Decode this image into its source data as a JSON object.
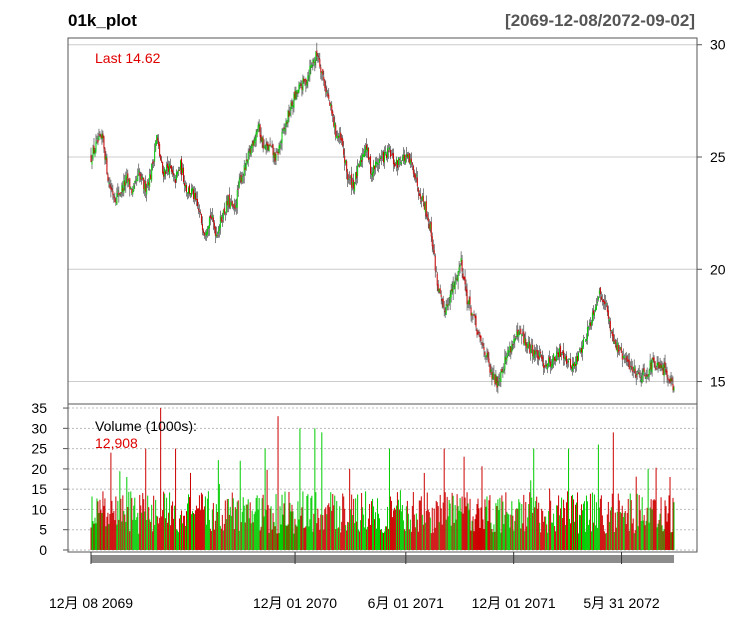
{
  "chart_data": {
    "type": "candlestick",
    "title": "01k_plot",
    "date_range": "[2069-12-08/2072-09-02]",
    "price_panel": {
      "last_label": "Last 14.62",
      "y_ticks": [
        15,
        20,
        25,
        30
      ],
      "ylim": [
        14.0,
        30.3
      ],
      "grid": true,
      "up_color": "#00cc00",
      "down_color": "#cc0000",
      "path": [
        [
          0,
          25.0
        ],
        [
          6,
          25.6
        ],
        [
          12,
          25.8
        ],
        [
          18,
          23.8
        ],
        [
          24,
          23.2
        ],
        [
          30,
          23.5
        ],
        [
          36,
          24.0
        ],
        [
          42,
          23.4
        ],
        [
          48,
          24.2
        ],
        [
          54,
          23.6
        ],
        [
          60,
          24.2
        ],
        [
          66,
          25.9
        ],
        [
          72,
          24.3
        ],
        [
          78,
          24.6
        ],
        [
          84,
          23.9
        ],
        [
          90,
          24.6
        ],
        [
          96,
          23.6
        ],
        [
          102,
          23.4
        ],
        [
          108,
          22.6
        ],
        [
          114,
          21.7
        ],
        [
          120,
          22.4
        ],
        [
          126,
          21.6
        ],
        [
          132,
          22.4
        ],
        [
          138,
          23.0
        ],
        [
          144,
          22.6
        ],
        [
          150,
          24.0
        ],
        [
          156,
          24.6
        ],
        [
          162,
          25.6
        ],
        [
          168,
          26.4
        ],
        [
          174,
          25.4
        ],
        [
          180,
          25.4
        ],
        [
          186,
          24.9
        ],
        [
          192,
          25.9
        ],
        [
          198,
          26.8
        ],
        [
          204,
          27.6
        ],
        [
          210,
          28.1
        ],
        [
          216,
          28.4
        ],
        [
          222,
          29.2
        ],
        [
          228,
          29.6
        ],
        [
          234,
          28.4
        ],
        [
          240,
          27.3
        ],
        [
          246,
          26.1
        ],
        [
          252,
          25.6
        ],
        [
          258,
          24.1
        ],
        [
          264,
          23.8
        ],
        [
          270,
          24.6
        ],
        [
          276,
          25.6
        ],
        [
          282,
          24.3
        ],
        [
          288,
          24.8
        ],
        [
          294,
          25.0
        ],
        [
          300,
          25.2
        ],
        [
          306,
          24.6
        ],
        [
          312,
          25.0
        ],
        [
          318,
          24.9
        ],
        [
          324,
          24.5
        ],
        [
          330,
          23.5
        ],
        [
          336,
          22.8
        ],
        [
          342,
          21.6
        ],
        [
          348,
          19.4
        ],
        [
          354,
          18.1
        ],
        [
          360,
          18.7
        ],
        [
          366,
          19.4
        ],
        [
          372,
          20.4
        ],
        [
          378,
          18.7
        ],
        [
          384,
          17.9
        ],
        [
          390,
          16.9
        ],
        [
          396,
          16.4
        ],
        [
          402,
          15.3
        ],
        [
          408,
          15.0
        ],
        [
          414,
          15.7
        ],
        [
          420,
          16.4
        ],
        [
          426,
          16.9
        ],
        [
          432,
          17.1
        ],
        [
          438,
          16.6
        ],
        [
          444,
          16.4
        ],
        [
          450,
          16.1
        ],
        [
          456,
          15.8
        ],
        [
          462,
          15.9
        ],
        [
          468,
          16.1
        ],
        [
          474,
          16.4
        ],
        [
          480,
          15.8
        ],
        [
          486,
          15.7
        ],
        [
          492,
          16.4
        ],
        [
          498,
          17.1
        ],
        [
          504,
          18.0
        ],
        [
          510,
          18.9
        ],
        [
          516,
          18.7
        ],
        [
          522,
          17.4
        ],
        [
          528,
          16.6
        ],
        [
          534,
          16.1
        ],
        [
          540,
          15.8
        ],
        [
          546,
          15.5
        ],
        [
          552,
          15.3
        ],
        [
          558,
          15.4
        ],
        [
          564,
          15.8
        ],
        [
          570,
          15.6
        ],
        [
          576,
          15.5
        ],
        [
          582,
          15.2
        ],
        [
          586,
          14.7
        ]
      ]
    },
    "volume_panel": {
      "label": "Volume (1000s):",
      "last_value": "12,908",
      "y_ticks": [
        0,
        5,
        10,
        15,
        20,
        25,
        30,
        35
      ],
      "ylim": [
        -0.5,
        36
      ],
      "grid": "dashed",
      "avg_k": 10,
      "spikes_k": [
        [
          20,
          24
        ],
        [
          36,
          18
        ],
        [
          55,
          25
        ],
        [
          70,
          35
        ],
        [
          85,
          25
        ],
        [
          100,
          19
        ],
        [
          150,
          22
        ],
        [
          175,
          25
        ],
        [
          188,
          33
        ],
        [
          210,
          30
        ],
        [
          225,
          30
        ],
        [
          232,
          29
        ],
        [
          260,
          20
        ],
        [
          300,
          25
        ],
        [
          335,
          19
        ],
        [
          355,
          25
        ],
        [
          375,
          23
        ],
        [
          445,
          25
        ],
        [
          480,
          25
        ],
        [
          510,
          26
        ],
        [
          525,
          29
        ],
        [
          560,
          20
        ],
        [
          582,
          18
        ]
      ]
    },
    "x_axis": {
      "tick_labels": [
        "12月 08 2069",
        "12月 01 2070",
        "6月 01 2071",
        "12月 01 2071",
        "5月 31 2072"
      ],
      "tick_fractions": [
        0,
        0.35,
        0.54,
        0.725,
        0.91
      ]
    }
  }
}
